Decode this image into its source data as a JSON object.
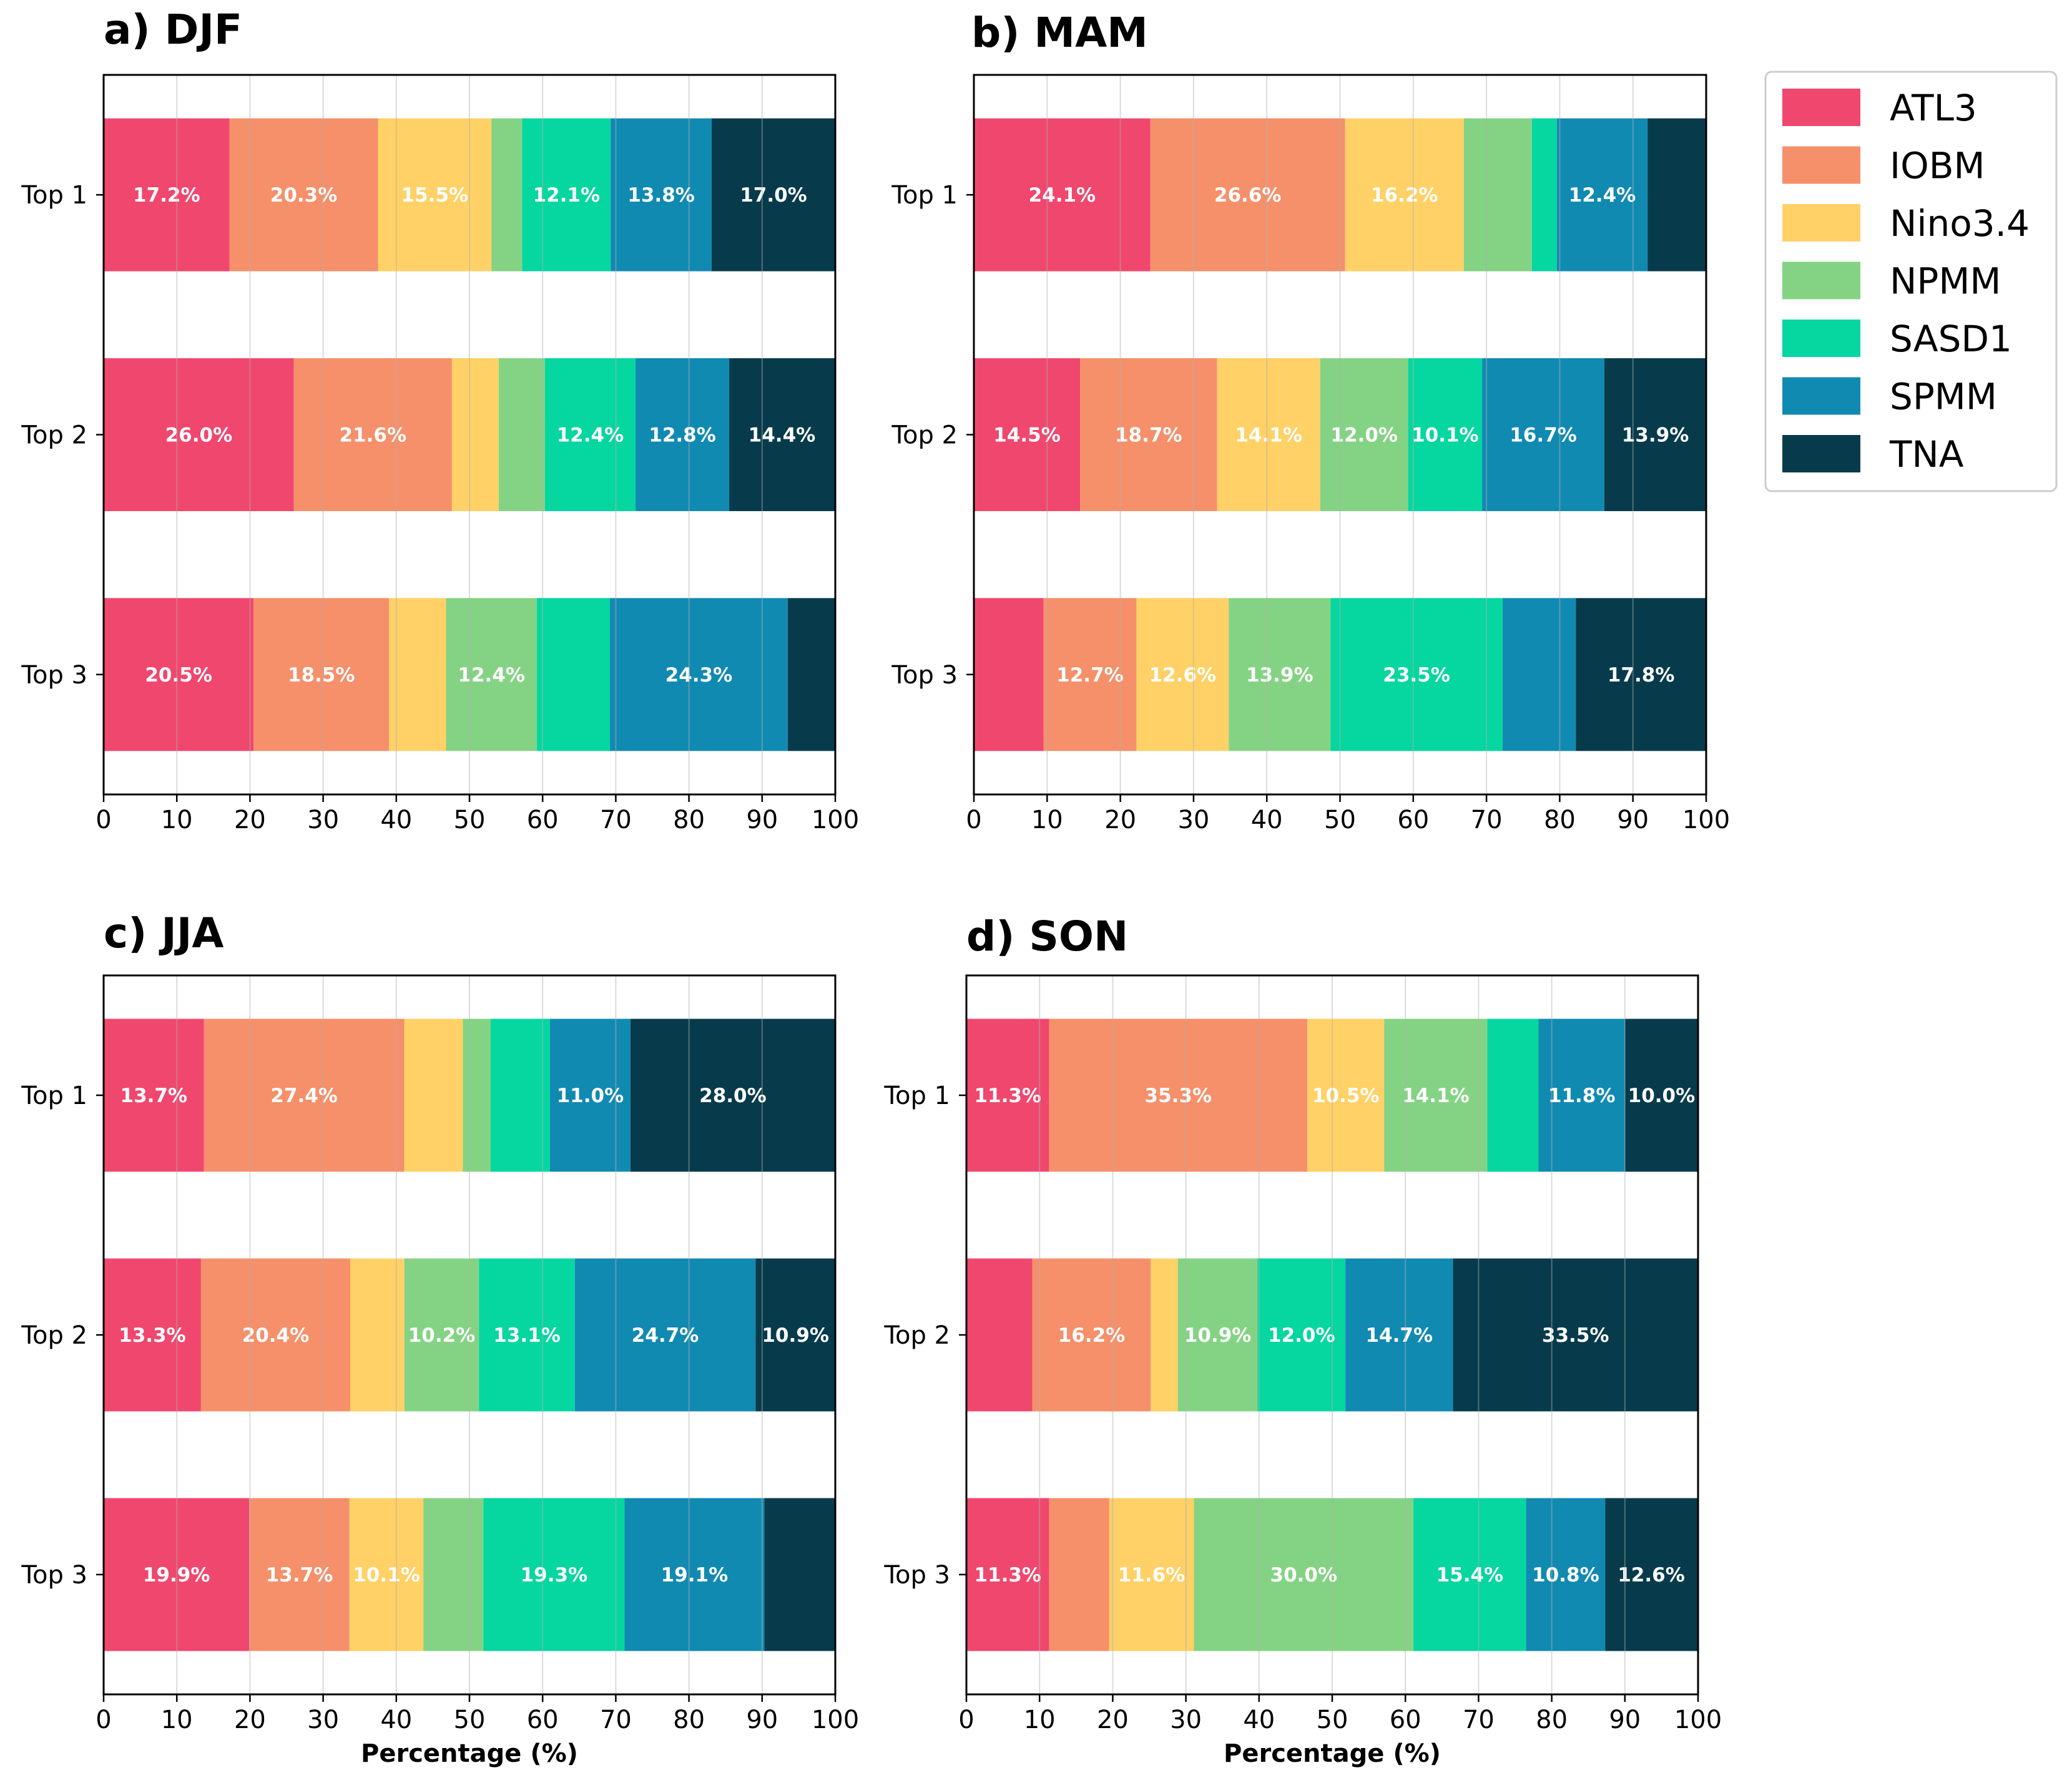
{
  "chart_data": [
    {
      "type": "bar",
      "orientation": "horizontal",
      "stacked": true,
      "title": "a) DJF",
      "xlabel": "",
      "xlim": [
        0,
        100
      ],
      "xticks": [
        "0",
        "10",
        "20",
        "30",
        "40",
        "50",
        "60",
        "70",
        "80",
        "90",
        "100"
      ],
      "categories": [
        "Top 1",
        "Top 2",
        "Top 3"
      ],
      "series": [
        {
          "name": "ATL3",
          "values": [
            17.2,
            26.0,
            20.5
          ],
          "labels": [
            "17.2%",
            "26.0%",
            "20.5%"
          ]
        },
        {
          "name": "IOBM",
          "values": [
            20.3,
            21.6,
            18.5
          ],
          "labels": [
            "20.3%",
            "21.6%",
            "18.5%"
          ]
        },
        {
          "name": "Nino3.4",
          "values": [
            15.5,
            6.4,
            7.8
          ],
          "labels": [
            "15.5%",
            "",
            ""
          ]
        },
        {
          "name": "NPMM",
          "values": [
            4.2,
            6.3,
            12.4
          ],
          "labels": [
            "",
            "",
            "12.4%"
          ]
        },
        {
          "name": "SASD1",
          "values": [
            12.1,
            12.4,
            10.0
          ],
          "labels": [
            "12.1%",
            "12.4%",
            ""
          ]
        },
        {
          "name": "SPMM",
          "values": [
            13.8,
            12.8,
            24.3
          ],
          "labels": [
            "13.8%",
            "12.8%",
            "24.3%"
          ]
        },
        {
          "name": "TNA",
          "values": [
            17.0,
            14.4,
            6.5
          ],
          "labels": [
            "17.0%",
            "14.4%",
            ""
          ]
        }
      ]
    },
    {
      "type": "bar",
      "orientation": "horizontal",
      "stacked": true,
      "title": "b) MAM",
      "xlabel": "",
      "xlim": [
        0,
        100
      ],
      "xticks": [
        "0",
        "10",
        "20",
        "30",
        "40",
        "50",
        "60",
        "70",
        "80",
        "90",
        "100"
      ],
      "categories": [
        "Top 1",
        "Top 2",
        "Top 3"
      ],
      "series": [
        {
          "name": "ATL3",
          "values": [
            24.1,
            14.5,
            9.5
          ],
          "labels": [
            "24.1%",
            "14.5%",
            ""
          ]
        },
        {
          "name": "IOBM",
          "values": [
            26.6,
            18.7,
            12.7
          ],
          "labels": [
            "26.6%",
            "18.7%",
            "12.7%"
          ]
        },
        {
          "name": "Nino3.4",
          "values": [
            16.2,
            14.1,
            12.6
          ],
          "labels": [
            "16.2%",
            "14.1%",
            "12.6%"
          ]
        },
        {
          "name": "NPMM",
          "values": [
            9.3,
            12.0,
            13.9
          ],
          "labels": [
            "",
            "12.0%",
            "13.9%"
          ]
        },
        {
          "name": "SASD1",
          "values": [
            3.4,
            10.1,
            23.5
          ],
          "labels": [
            "",
            "10.1%",
            "23.5%"
          ]
        },
        {
          "name": "SPMM",
          "values": [
            12.4,
            16.7,
            10.0
          ],
          "labels": [
            "12.4%",
            "16.7%",
            ""
          ]
        },
        {
          "name": "TNA",
          "values": [
            8.0,
            13.9,
            17.8
          ],
          "labels": [
            "",
            "13.9%",
            "17.8%"
          ]
        }
      ]
    },
    {
      "type": "bar",
      "orientation": "horizontal",
      "stacked": true,
      "title": "c) JJA",
      "xlabel": "Percentage (%)",
      "xlim": [
        0,
        100
      ],
      "xticks": [
        "0",
        "10",
        "20",
        "30",
        "40",
        "50",
        "60",
        "70",
        "80",
        "90",
        "100"
      ],
      "categories": [
        "Top 1",
        "Top 2",
        "Top 3"
      ],
      "series": [
        {
          "name": "ATL3",
          "values": [
            13.7,
            13.3,
            19.9
          ],
          "labels": [
            "13.7%",
            "13.3%",
            "19.9%"
          ]
        },
        {
          "name": "IOBM",
          "values": [
            27.4,
            20.4,
            13.7
          ],
          "labels": [
            "27.4%",
            "20.4%",
            "13.7%"
          ]
        },
        {
          "name": "Nino3.4",
          "values": [
            8.0,
            7.4,
            10.1
          ],
          "labels": [
            "",
            "",
            "10.1%"
          ]
        },
        {
          "name": "NPMM",
          "values": [
            3.8,
            10.2,
            8.2
          ],
          "labels": [
            "",
            "10.2%",
            ""
          ]
        },
        {
          "name": "SASD1",
          "values": [
            8.1,
            13.1,
            19.3
          ],
          "labels": [
            "",
            "13.1%",
            "19.3%"
          ]
        },
        {
          "name": "SPMM",
          "values": [
            11.0,
            24.7,
            19.1
          ],
          "labels": [
            "11.0%",
            "24.7%",
            "19.1%"
          ]
        },
        {
          "name": "TNA",
          "values": [
            28.0,
            10.9,
            9.7
          ],
          "labels": [
            "28.0%",
            "10.9%",
            ""
          ]
        }
      ]
    },
    {
      "type": "bar",
      "orientation": "horizontal",
      "stacked": true,
      "title": "d) SON",
      "xlabel": "Percentage (%)",
      "xlim": [
        0,
        100
      ],
      "xticks": [
        "0",
        "10",
        "20",
        "30",
        "40",
        "50",
        "60",
        "70",
        "80",
        "90",
        "100"
      ],
      "categories": [
        "Top 1",
        "Top 2",
        "Top 3"
      ],
      "series": [
        {
          "name": "ATL3",
          "values": [
            11.3,
            9.0,
            11.3
          ],
          "labels": [
            "11.3%",
            "",
            "11.3%"
          ]
        },
        {
          "name": "IOBM",
          "values": [
            35.3,
            16.2,
            8.2
          ],
          "labels": [
            "35.3%",
            "16.2%",
            ""
          ]
        },
        {
          "name": "Nino3.4",
          "values": [
            10.5,
            3.7,
            11.6
          ],
          "labels": [
            "10.5%",
            "",
            "11.6%"
          ]
        },
        {
          "name": "NPMM",
          "values": [
            14.1,
            10.9,
            30.0
          ],
          "labels": [
            "14.1%",
            "10.9%",
            "30.0%"
          ]
        },
        {
          "name": "SASD1",
          "values": [
            7.0,
            12.0,
            15.4
          ],
          "labels": [
            "",
            "12.0%",
            "15.4%"
          ]
        },
        {
          "name": "SPMM",
          "values": [
            11.8,
            14.7,
            10.8
          ],
          "labels": [
            "11.8%",
            "14.7%",
            "10.8%"
          ]
        },
        {
          "name": "TNA",
          "values": [
            10.0,
            33.5,
            12.6
          ],
          "labels": [
            "10.0%",
            "33.5%",
            "12.6%"
          ]
        }
      ]
    }
  ],
  "legend": {
    "placement": "right",
    "items": [
      {
        "name": "ATL3",
        "color": "#f0476e"
      },
      {
        "name": "IOBM",
        "color": "#f5906b"
      },
      {
        "name": "Nino3.4",
        "color": "#ffd166"
      },
      {
        "name": "NPMM",
        "color": "#84d384"
      },
      {
        "name": "SASD1",
        "color": "#06d6a0"
      },
      {
        "name": "SPMM",
        "color": "#118ab2"
      },
      {
        "name": "TNA",
        "color": "#073b4c"
      }
    ]
  }
}
